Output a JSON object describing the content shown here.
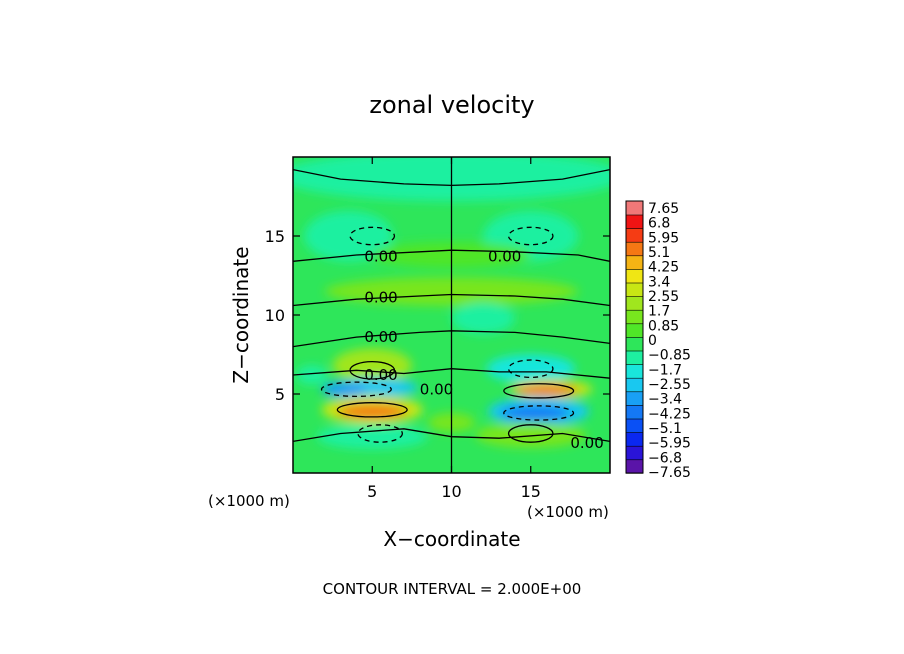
{
  "chart_data": {
    "type": "heatmap",
    "title": "zonal velocity",
    "xlabel": "X−coordinate",
    "ylabel": "Z−coordinate",
    "x_unit": "(×1000 m)",
    "y_unit": "(×1000 m)",
    "xlim": [
      0,
      20
    ],
    "ylim": [
      0,
      20
    ],
    "x_ticks": [
      "5",
      "10",
      "15"
    ],
    "x_tick_values": [
      5,
      10,
      15
    ],
    "y_ticks": [
      "5",
      "10",
      "15"
    ],
    "y_tick_values": [
      5,
      10,
      15
    ],
    "footer": "CONTOUR INTERVAL = 2.000E+00",
    "colorbar": {
      "labels": [
        "7.65",
        "6.8",
        "5.95",
        "5.1",
        "4.25",
        "3.4",
        "2.55",
        "1.7",
        "0.85",
        "0",
        "−0.85",
        "−1.7",
        "−2.55",
        "−3.4",
        "−4.25",
        "−5.1",
        "−5.95",
        "−6.8",
        "−7.65"
      ],
      "min": -7.65,
      "max": 7.65,
      "colors": [
        "#5a14a8",
        "#2a14d8",
        "#0a28f0",
        "#0a50f5",
        "#1478f5",
        "#19a0f5",
        "#19c8f0",
        "#19e6dc",
        "#1ef0a0",
        "#2ee65a",
        "#50e628",
        "#78e61e",
        "#a0e61e",
        "#c8e614",
        "#f0e614",
        "#f5b414",
        "#f57814",
        "#f53c14",
        "#f01414",
        "#f07878"
      ]
    },
    "contour_labels": [
      "0.00",
      "0.00",
      "0.00",
      "0.00",
      "0.00",
      "0.00",
      "0.00"
    ],
    "features": [
      {
        "x": 5.0,
        "z": 4.0,
        "value": 4.5,
        "kind": "positive-max"
      },
      {
        "x": 15.5,
        "z": 5.2,
        "value": 4.5,
        "kind": "positive-max"
      },
      {
        "x": 4.0,
        "z": 5.3,
        "value": -3.5,
        "kind": "negative-min"
      },
      {
        "x": 15.5,
        "z": 3.8,
        "value": -4.0,
        "kind": "negative-min"
      },
      {
        "x": 5.0,
        "z": 6.5,
        "value": 1.5,
        "kind": "positive"
      },
      {
        "x": 15.0,
        "z": 6.6,
        "value": -2.0,
        "kind": "negative"
      },
      {
        "x": 5.5,
        "z": 2.5,
        "value": -1.5,
        "kind": "negative"
      },
      {
        "x": 15.0,
        "z": 2.5,
        "value": 1.5,
        "kind": "positive"
      },
      {
        "x": 5.0,
        "z": 15.0,
        "value": -1.0,
        "kind": "negative"
      },
      {
        "x": 15.0,
        "z": 15.0,
        "value": -1.0,
        "kind": "negative"
      }
    ]
  }
}
